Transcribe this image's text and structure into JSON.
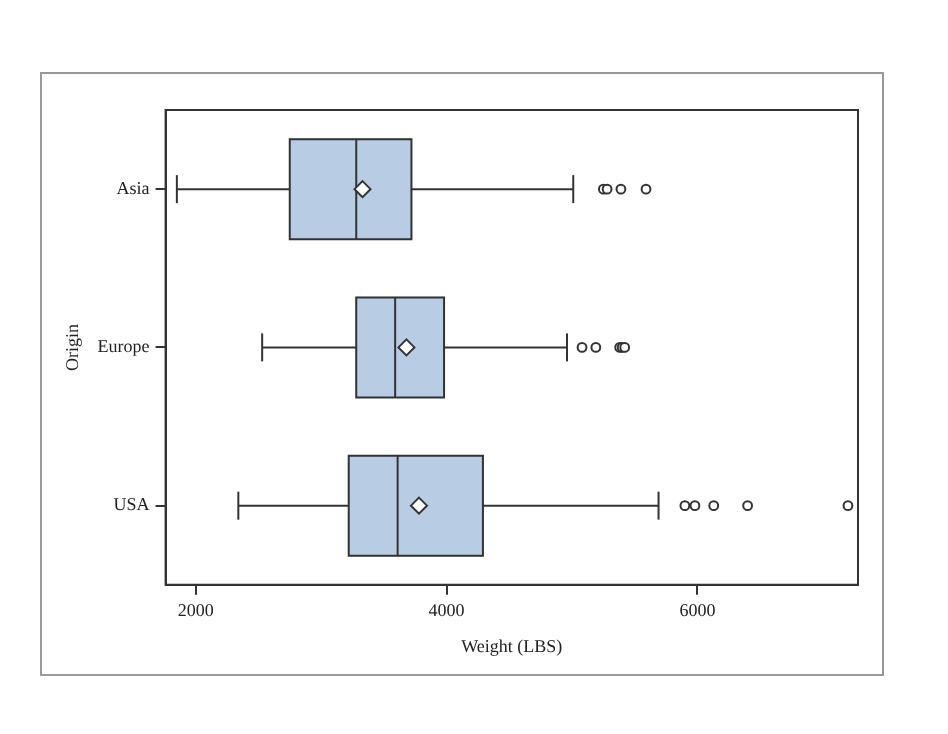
{
  "chart_data": {
    "type": "box",
    "orientation": "horizontal",
    "xlabel": "Weight (LBS)",
    "ylabel": "Origin",
    "categories": [
      "Asia",
      "Europe",
      "USA"
    ],
    "color": "#b8cce4",
    "boxes": [
      {
        "low": 1850,
        "q1": 2750,
        "median": 3280,
        "q3": 3720,
        "high": 5010,
        "mean": 3330,
        "outliers": [
          5250,
          5280,
          5390,
          5590
        ]
      },
      {
        "low": 2530,
        "q1": 3280,
        "median": 3590,
        "q3": 3980,
        "high": 4960,
        "mean": 3680,
        "outliers": [
          5080,
          5190,
          5380,
          5400,
          5420
        ]
      },
      {
        "low": 2340,
        "q1": 3220,
        "median": 3610,
        "q3": 4290,
        "high": 5690,
        "mean": 3780,
        "outliers": [
          5900,
          5980,
          6130,
          6400,
          7200
        ]
      }
    ],
    "xlim": [
      1760,
      7280
    ],
    "xticks": [
      2000,
      4000,
      6000
    ],
    "grid": false,
    "legend": false
  }
}
